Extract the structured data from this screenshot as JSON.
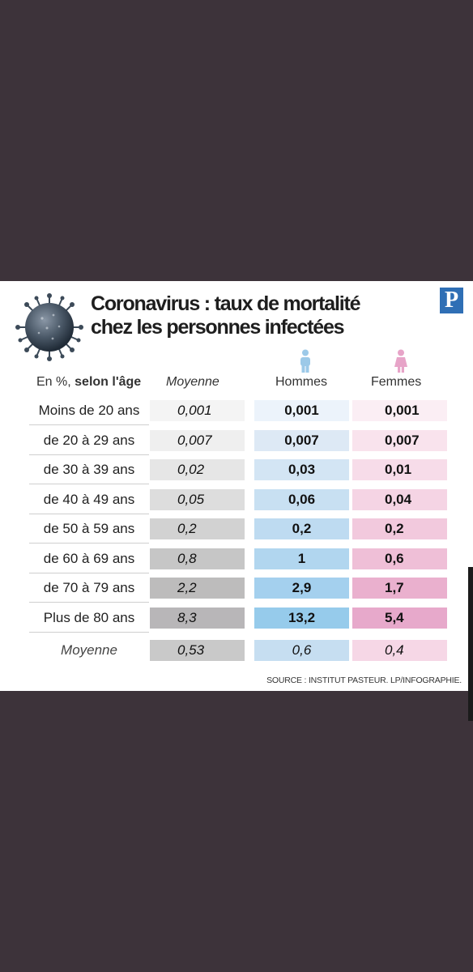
{
  "header": {
    "title_line1": "Coronavirus : taux de mortalité",
    "title_line2": "chez les personnes infectées",
    "logo_letter": "P",
    "icons": [
      "virus-icon",
      "man-icon",
      "woman-icon"
    ]
  },
  "chart_data": {
    "type": "table",
    "title": "Coronavirus : taux de mortalité chez les personnes infectées",
    "unit_label_prefix": "En %, ",
    "unit_label_bold": "selon l'âge",
    "columns": [
      "Moyenne",
      "Hommes",
      "Femmes"
    ],
    "rows": [
      {
        "label": "Moins de 20 ans",
        "moyenne": "0,001",
        "hommes": "0,001",
        "femmes": "0,001"
      },
      {
        "label": "de 20 à 29 ans",
        "moyenne": "0,007",
        "hommes": "0,007",
        "femmes": "0,007"
      },
      {
        "label": "de 30 à 39 ans",
        "moyenne": "0,02",
        "hommes": "0,03",
        "femmes": "0,01"
      },
      {
        "label": "de 40 à 49 ans",
        "moyenne": "0,05",
        "hommes": "0,06",
        "femmes": "0,04"
      },
      {
        "label": "de 50 à 59 ans",
        "moyenne": "0,2",
        "hommes": "0,2",
        "femmes": "0,2"
      },
      {
        "label": "de 60 à 69 ans",
        "moyenne": "0,8",
        "hommes": "1",
        "femmes": "0,6"
      },
      {
        "label": "de 70 à 79 ans",
        "moyenne": "2,2",
        "hommes": "2,9",
        "femmes": "1,7"
      },
      {
        "label": "Plus de 80 ans",
        "moyenne": "8,3",
        "hommes": "13,2",
        "femmes": "5,4"
      }
    ],
    "total": {
      "label": "Moyenne",
      "moyenne": "0,53",
      "hommes": "0,6",
      "femmes": "0,4"
    },
    "source": "SOURCE : INSTITUT PASTEUR.  LP/INFOGRAPHIE."
  },
  "colors": {
    "background": "#3d333a",
    "moyenne_scale": [
      "#f4f4f4",
      "#efefef",
      "#e6e6e6",
      "#dddddd",
      "#d2d2d2",
      "#c6c6c6",
      "#bdbcbc",
      "#b8b6b8"
    ],
    "moyenne_total": "#c9c9c9",
    "hommes_scale": [
      "#ecf3fb",
      "#dde9f5",
      "#d3e5f4",
      "#c8e0f2",
      "#bedbf1",
      "#b1d6ef",
      "#a4d0ee",
      "#96cbeb"
    ],
    "hommes_total": "#c6def1",
    "femmes_scale": [
      "#fbeef4",
      "#f9e3ed",
      "#f7dce9",
      "#f5d4e4",
      "#f2c9dd",
      "#efbfd7",
      "#eab0ce",
      "#e7a9cb"
    ],
    "femmes_total": "#f6d7e6"
  }
}
